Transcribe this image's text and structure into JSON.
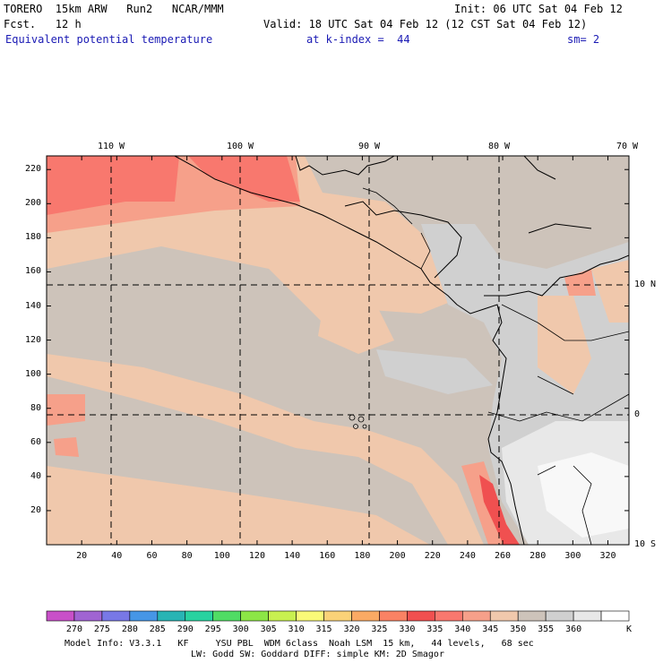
{
  "header": {
    "model": "TORERO  15km ARW   Run2   NCAR/MMM",
    "init": "Init: 06 UTC Sat 04 Feb 12",
    "fcst": "Fcst.   12 h",
    "valid": "Valid: 18 UTC Sat 04 Feb 12 (12 CST Sat 04 Feb 12)",
    "field": "Equivalent potential temperature",
    "kindex": "at k-index =  44",
    "smooth": "sm= 2"
  },
  "map": {
    "lon_labels": [
      "110 W",
      "100 W",
      "90 W",
      "80 W",
      "70 W"
    ],
    "lat_labels": [
      "10 N",
      "0",
      "10 S"
    ],
    "y_ticks": [
      "220",
      "200",
      "180",
      "160",
      "140",
      "120",
      "100",
      "80",
      "60",
      "40",
      "20"
    ],
    "x_ticks": [
      "20",
      "40",
      "60",
      "80",
      "100",
      "120",
      "140",
      "160",
      "180",
      "200",
      "220",
      "240",
      "260",
      "280",
      "300",
      "320"
    ]
  },
  "colorbar": {
    "levels": [
      "270",
      "275",
      "280",
      "285",
      "290",
      "295",
      "300",
      "305",
      "310",
      "315",
      "320",
      "325",
      "330",
      "335",
      "340",
      "345",
      "350",
      "355",
      "360"
    ],
    "unit": "K",
    "colors": [
      "#c850c8",
      "#a064d2",
      "#7878e6",
      "#4696e6",
      "#28b4b4",
      "#28d2a0",
      "#50dc64",
      "#8ce646",
      "#c8f050",
      "#fafa78",
      "#fad278",
      "#faaa64",
      "#fa8264",
      "#f05050",
      "#f8786e",
      "#f6a08a",
      "#f0c8ac",
      "#cdc3ba",
      "#d0d0d0",
      "#e8e8e8",
      "#ffffff"
    ]
  },
  "footer": {
    "line1": "Model Info: V3.3.1   KF     YSU PBL  WDM 6class  Noah LSM  15 km,   44 levels,   68 sec",
    "line2": "LW: Godd SW: Goddard DIFF: simple KM: 2D Smagor"
  }
}
